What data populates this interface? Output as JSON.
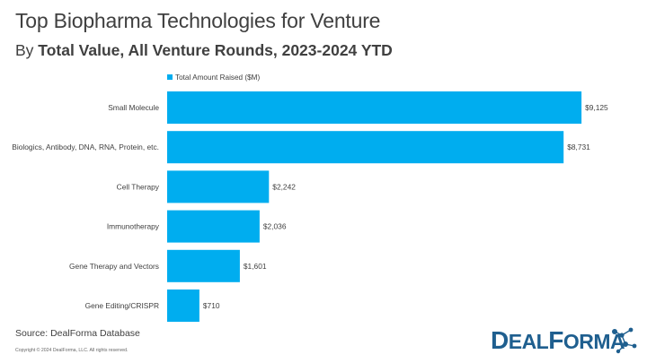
{
  "header": {
    "title": "Top Biopharma Technologies for Venture",
    "subtitle_prefix": "By ",
    "subtitle_bold": "Total Value, All Venture Rounds, 2023-2024 YTD"
  },
  "chart_data": {
    "type": "bar",
    "orientation": "horizontal",
    "categories": [
      "Small Molecule",
      "Biologics, Antibody, DNA, RNA, Protein, etc.",
      "Cell Therapy",
      "Immunotherapy",
      "Gene Therapy and Vectors",
      "Gene Editing/CRISPR"
    ],
    "series": [
      {
        "name": "Total Amount Raised ($M)",
        "values": [
          9125,
          8731,
          2242,
          2036,
          1601,
          710
        ]
      }
    ],
    "value_labels": [
      "$9,125",
      "$8,731",
      "$2,242",
      "$2,036",
      "$1,601",
      "$710"
    ],
    "xlim": [
      0,
      9400
    ],
    "grid": false,
    "legend_position": "top-left",
    "bar_color": "#00adef"
  },
  "footer": {
    "source": "Source: DealForma Database",
    "copyright": "Copyright © 2024 DealForma, LLC. All rights reserved."
  },
  "logo": {
    "text_first": "D",
    "text_rest": "EAL",
    "text_second": "F",
    "text_second_rest": "ORMA",
    "icon": "molecule-dots-icon",
    "color": "#1f5f8f"
  }
}
